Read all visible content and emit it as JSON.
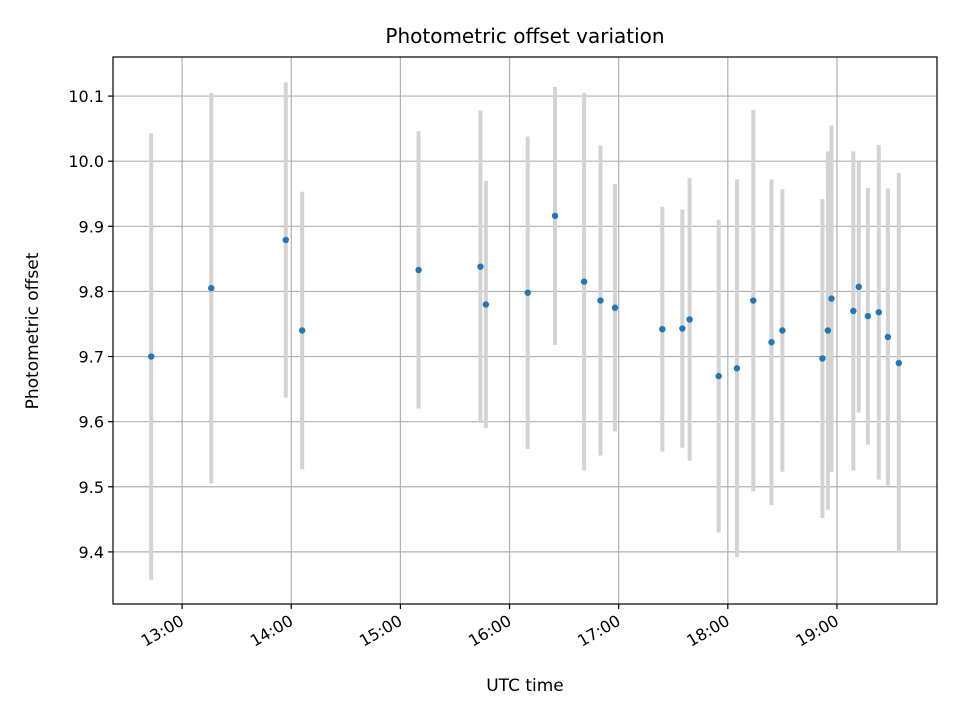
{
  "chart_data": {
    "type": "scatter",
    "title": "Photometric offset variation",
    "xlabel": "UTC time",
    "ylabel": "Photometric offset",
    "x_ticks": [
      "13:00",
      "14:00",
      "15:00",
      "16:00",
      "17:00",
      "18:00",
      "19:00"
    ],
    "y_ticks": [
      "9.4",
      "9.5",
      "9.6",
      "9.7",
      "9.8",
      "9.9",
      "10.0",
      "10.1"
    ],
    "xlim": [
      "12:22",
      "19:55"
    ],
    "ylim": [
      9.32,
      10.16
    ],
    "grid": true,
    "legend": "none",
    "point_color": "#1f77b4",
    "errorbar_color": "#d3d3d3",
    "points": [
      {
        "x": "12:43",
        "y": 9.7,
        "yerr": 0.343
      },
      {
        "x": "13:16",
        "y": 9.805,
        "yerr": 0.3
      },
      {
        "x": "13:57",
        "y": 9.879,
        "yerr": 0.242
      },
      {
        "x": "14:06",
        "y": 9.74,
        "yerr": 0.213
      },
      {
        "x": "15:10",
        "y": 9.833,
        "yerr": 0.213
      },
      {
        "x": "15:44",
        "y": 9.838,
        "yerr": 0.24
      },
      {
        "x": "15:47",
        "y": 9.78,
        "yerr": 0.19
      },
      {
        "x": "16:10",
        "y": 9.798,
        "yerr": 0.24
      },
      {
        "x": "16:25",
        "y": 9.916,
        "yerr": 0.198
      },
      {
        "x": "16:41",
        "y": 9.815,
        "yerr": 0.29
      },
      {
        "x": "16:50",
        "y": 9.786,
        "yerr": 0.238
      },
      {
        "x": "16:58",
        "y": 9.775,
        "yerr": 0.19
      },
      {
        "x": "17:24",
        "y": 9.742,
        "yerr": 0.188
      },
      {
        "x": "17:35",
        "y": 9.743,
        "yerr": 0.183
      },
      {
        "x": "17:39",
        "y": 9.757,
        "yerr": 0.217
      },
      {
        "x": "17:55",
        "y": 9.67,
        "yerr": 0.24
      },
      {
        "x": "18:05",
        "y": 9.682,
        "yerr": 0.29
      },
      {
        "x": "18:14",
        "y": 9.786,
        "yerr": 0.293
      },
      {
        "x": "18:24",
        "y": 9.722,
        "yerr": 0.25
      },
      {
        "x": "18:30",
        "y": 9.74,
        "yerr": 0.217
      },
      {
        "x": "18:52",
        "y": 9.697,
        "yerr": 0.245
      },
      {
        "x": "18:55",
        "y": 9.74,
        "yerr": 0.275
      },
      {
        "x": "18:57",
        "y": 9.789,
        "yerr": 0.266
      },
      {
        "x": "19:09",
        "y": 9.77,
        "yerr": 0.245
      },
      {
        "x": "19:12",
        "y": 9.807,
        "yerr": 0.193
      },
      {
        "x": "19:17",
        "y": 9.762,
        "yerr": 0.197
      },
      {
        "x": "19:23",
        "y": 9.768,
        "yerr": 0.257
      },
      {
        "x": "19:28",
        "y": 9.73,
        "yerr": 0.228
      },
      {
        "x": "19:34",
        "y": 9.69,
        "yerr": 0.292
      }
    ]
  }
}
